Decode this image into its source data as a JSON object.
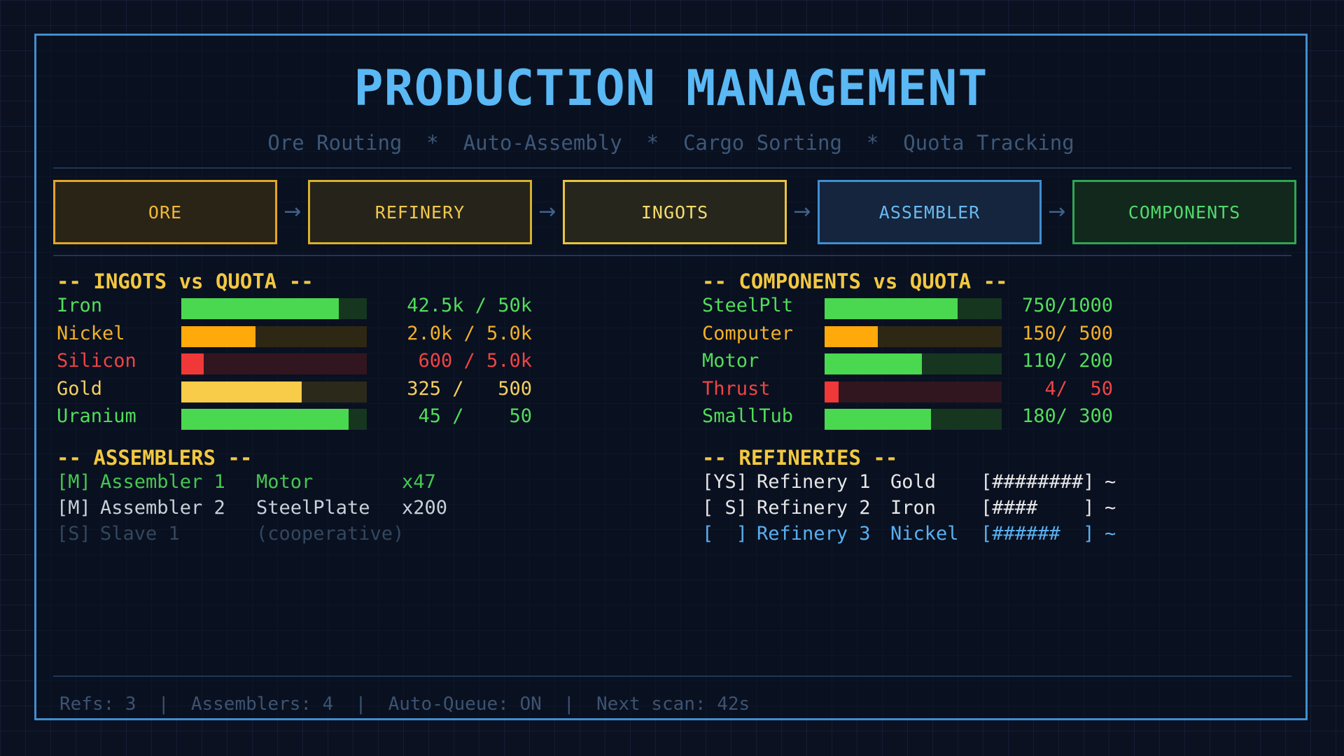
{
  "header": {
    "title": "PRODUCTION MANAGEMENT",
    "subtitle": "Ore Routing  *  Auto-Assembly  *  Cargo Sorting  *  Quota Tracking"
  },
  "pipeline": [
    {
      "label": "ORE",
      "color": "#e2a526",
      "text_color": "#f0b83a",
      "bg": "#2a2416"
    },
    {
      "label": "REFINERY",
      "color": "#d8b02e",
      "text_color": "#f0c850",
      "bg": "#26241a"
    },
    {
      "label": "INGOTS",
      "color": "#e8c440",
      "text_color": "#f5dc70",
      "bg": "#27261c"
    },
    {
      "label": "ASSEMBLER",
      "color": "#3f8fd0",
      "text_color": "#6ab8f0",
      "bg": "#14253d"
    },
    {
      "label": "COMPONENTS",
      "color": "#2fa652",
      "text_color": "#52d86e",
      "bg": "#12281c"
    }
  ],
  "ingots": {
    "title": "-- INGOTS vs QUOTA --",
    "rows": [
      {
        "name": "Iron",
        "value": "42.5k / 50k",
        "fill": 0.85,
        "color": "#4ad850",
        "track": "#163620",
        "label_color": "#52dd5a"
      },
      {
        "name": "Nickel",
        "value": "2.0k / 5.0k",
        "fill": 0.4,
        "color": "#ffa90a",
        "track": "#2e2714",
        "label_color": "#f2b02a"
      },
      {
        "name": "Silicon",
        "value": "600 / 5.0k",
        "fill": 0.12,
        "color": "#f03838",
        "track": "#311620",
        "label_color": "#f04444"
      },
      {
        "name": "Gold",
        "value": "325 /   500",
        "fill": 0.65,
        "color": "#f8cc48",
        "track": "#2b2a1a",
        "label_color": "#f3d060"
      },
      {
        "name": "Uranium",
        "value": "45 /    50",
        "fill": 0.9,
        "color": "#4ad850",
        "track": "#163620",
        "label_color": "#52dd5a"
      }
    ]
  },
  "components": {
    "title": "-- COMPONENTS vs QUOTA --",
    "rows": [
      {
        "name": "SteelPlt",
        "value": "750/1000",
        "fill": 0.75,
        "color": "#4ad850",
        "track": "#163620",
        "label_color": "#52dd5a"
      },
      {
        "name": "Computer",
        "value": "150/ 500",
        "fill": 0.3,
        "color": "#ffa90a",
        "track": "#2e2714",
        "label_color": "#f2b02a"
      },
      {
        "name": "Motor",
        "value": "110/ 200",
        "fill": 0.55,
        "color": "#4ad850",
        "track": "#163620",
        "label_color": "#52dd5a"
      },
      {
        "name": "Thrust",
        "value": "4/  50",
        "fill": 0.08,
        "color": "#f03838",
        "track": "#311620",
        "label_color": "#f04444"
      },
      {
        "name": "SmallTub",
        "value": "180/ 300",
        "fill": 0.6,
        "color": "#4ad850",
        "track": "#163620",
        "label_color": "#52dd5a"
      }
    ]
  },
  "assemblers": {
    "title": "-- ASSEMBLERS --",
    "rows": [
      {
        "mode": "[M]",
        "name": "Assembler 1",
        "item": "Motor",
        "qty": "x47",
        "color": "#45c850"
      },
      {
        "mode": "[M]",
        "name": "Assembler 2",
        "item": "SteelPlate",
        "qty": "x200",
        "color": "#c8d0d8"
      },
      {
        "mode": "[S]",
        "name": "Slave 1",
        "item": "(cooperative)",
        "qty": "",
        "color": "#33475e"
      }
    ]
  },
  "refineries": {
    "title": "-- REFINERIES --",
    "rows": [
      {
        "mode": "[YS]",
        "name": "Refinery 1",
        "ore": "Gold",
        "progress": "[########]",
        "tail": "~",
        "color": "#e6e6e6"
      },
      {
        "mode": "[ S]",
        "name": "Refinery 2",
        "ore": "Iron",
        "progress": "[####    ]",
        "tail": "~",
        "color": "#e6e6e6"
      },
      {
        "mode": "[  ]",
        "name": "Refinery 3",
        "ore": "Nickel",
        "progress": "[######  ]",
        "tail": "~",
        "color": "#5ab0f0"
      }
    ]
  },
  "footer": {
    "text": "Refs: 3  |  Assemblers: 4  |  Auto-Queue: ON  |  Next scan: 42s"
  }
}
